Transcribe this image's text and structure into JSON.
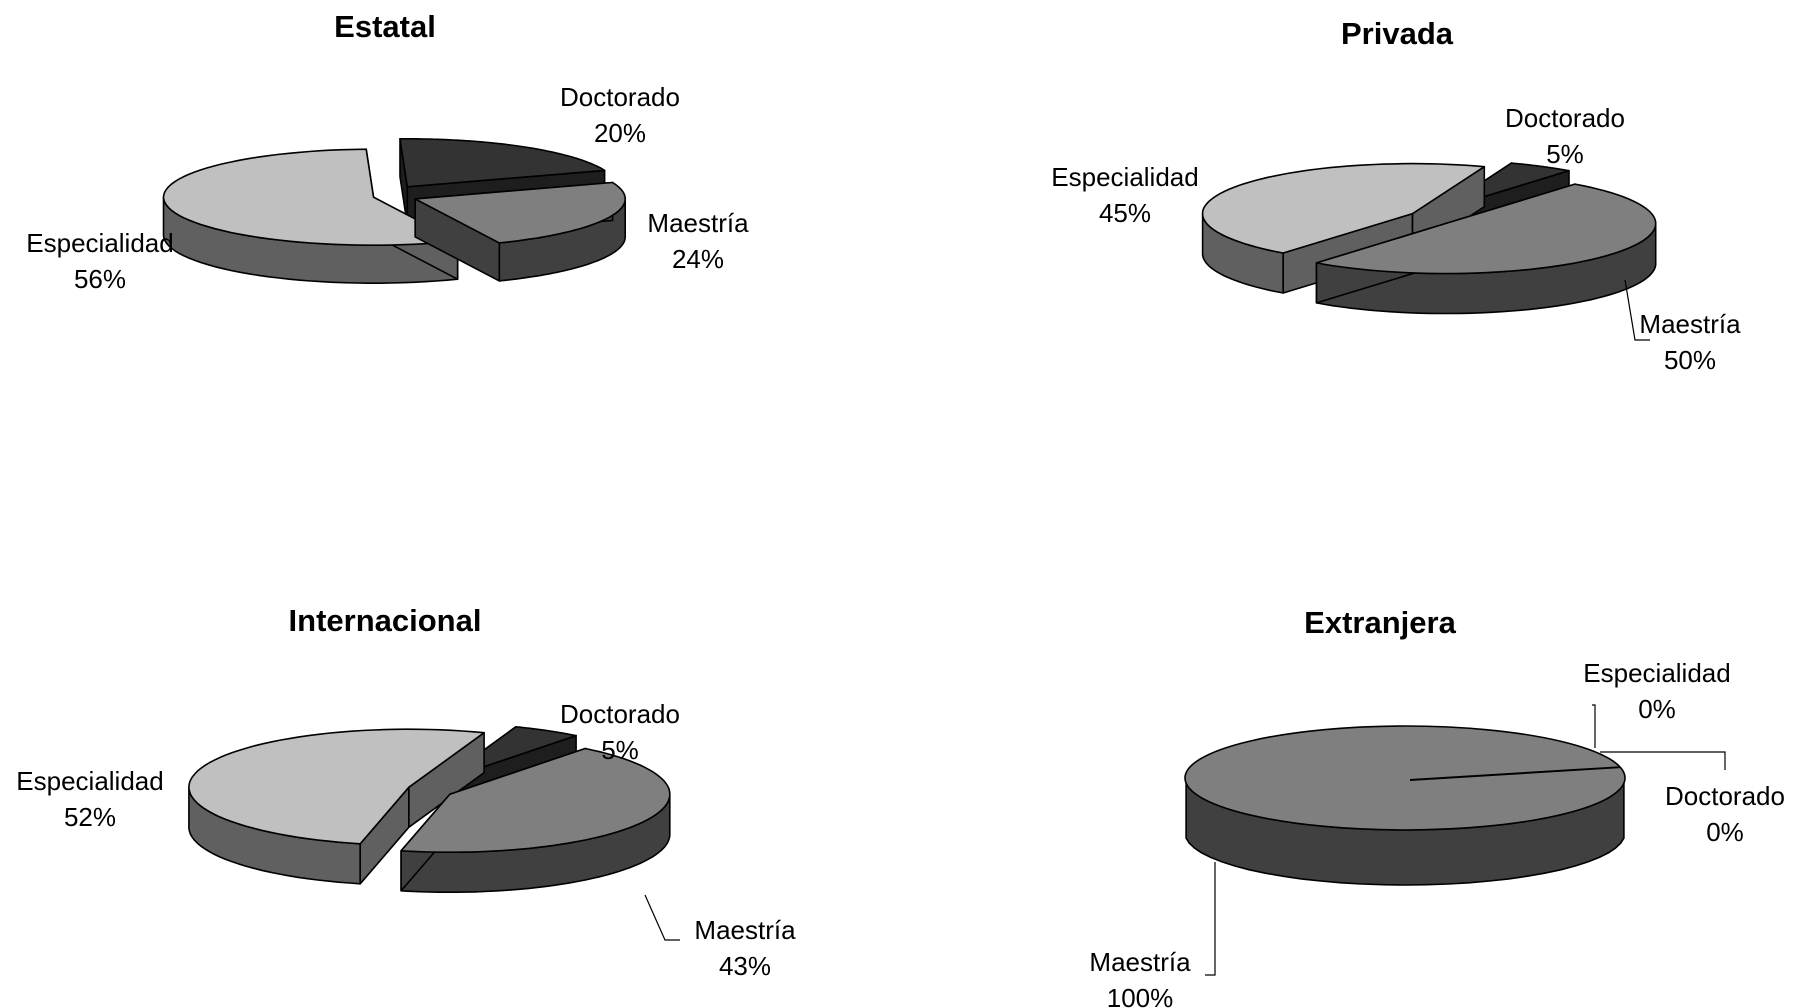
{
  "chart_data": [
    {
      "type": "pie",
      "title": "Estatal",
      "slices": [
        {
          "label": "Doctorado",
          "value": 20,
          "value_label": "20%",
          "color": "#333333",
          "side_color": "#1e1e1e"
        },
        {
          "label": "Maestría",
          "value": 24,
          "value_label": "24%",
          "color": "#7f7f7f",
          "side_color": "#404040"
        },
        {
          "label": "Especialidad",
          "value": 56,
          "value_label": "56%",
          "color": "#c0c0c0",
          "side_color": "#606060"
        }
      ]
    },
    {
      "type": "pie",
      "title": "Privada",
      "slices": [
        {
          "label": "Doctorado",
          "value": 5,
          "value_label": "5%",
          "color": "#333333",
          "side_color": "#1e1e1e"
        },
        {
          "label": "Maestría",
          "value": 50,
          "value_label": "50%",
          "color": "#7f7f7f",
          "side_color": "#404040"
        },
        {
          "label": "Especialidad",
          "value": 45,
          "value_label": "45%",
          "color": "#c0c0c0",
          "side_color": "#606060"
        }
      ]
    },
    {
      "type": "pie",
      "title": "Internacional",
      "slices": [
        {
          "label": "Doctorado",
          "value": 5,
          "value_label": "5%",
          "color": "#333333",
          "side_color": "#1e1e1e"
        },
        {
          "label": "Maestría",
          "value": 43,
          "value_label": "43%",
          "color": "#7f7f7f",
          "side_color": "#404040"
        },
        {
          "label": "Especialidad",
          "value": 52,
          "value_label": "52%",
          "color": "#c0c0c0",
          "side_color": "#606060"
        }
      ]
    },
    {
      "type": "pie",
      "title": "Extranjera",
      "slices": [
        {
          "label": "Especialidad",
          "value": 0,
          "value_label": "0%",
          "color": "#c0c0c0",
          "side_color": "#606060"
        },
        {
          "label": "Doctorado",
          "value": 0,
          "value_label": "0%",
          "color": "#333333",
          "side_color": "#1e1e1e"
        },
        {
          "label": "Maestría",
          "value": 100,
          "value_label": "100%",
          "color": "#7f7f7f",
          "side_color": "#404040"
        }
      ]
    }
  ]
}
